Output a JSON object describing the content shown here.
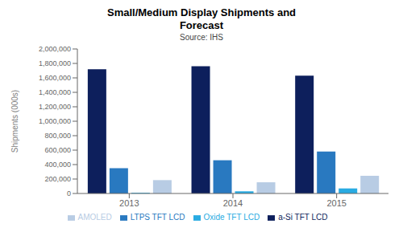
{
  "chart_data": {
    "type": "bar",
    "title": "Small/Medium Display Shipments and\nForecast",
    "subtitle": "Source: IHS",
    "ylabel": "Shipments (000s)",
    "categories": [
      "2013",
      "2014",
      "2015"
    ],
    "series": [
      {
        "name": "a-Si TFT LCD",
        "color": "#0d1f5c",
        "values": [
          1720000,
          1760000,
          1630000
        ]
      },
      {
        "name": "LTPS TFT LCD",
        "color": "#2979c0",
        "values": [
          350000,
          460000,
          580000
        ]
      },
      {
        "name": "Oxide TFT LCD",
        "color": "#29abe2",
        "values": [
          10000,
          30000,
          70000
        ]
      },
      {
        "name": "AMOLED",
        "color": "#b8cce4",
        "values": [
          185000,
          155000,
          245000
        ]
      }
    ],
    "ylim": [
      0,
      2000000
    ],
    "yticks": [
      0,
      {
        "value": 200000,
        "label": "200,000"
      },
      {
        "value": 400000,
        "label": "400,000"
      },
      {
        "value": 600000,
        "label": "600,000"
      },
      {
        "value": 800000,
        "label": "800,000"
      },
      {
        "value": 1000000,
        "label": "1,000,000"
      },
      {
        "value": 1200000,
        "label": "1,200,000"
      },
      {
        "value": 1400000,
        "label": "1,400,000"
      },
      {
        "value": 1600000,
        "label": "1,600,000"
      },
      {
        "value": 1800000,
        "label": "1,800,000"
      },
      {
        "value": 2000000,
        "label": "2,000,000"
      }
    ],
    "grid": false,
    "legend": "bottom"
  }
}
